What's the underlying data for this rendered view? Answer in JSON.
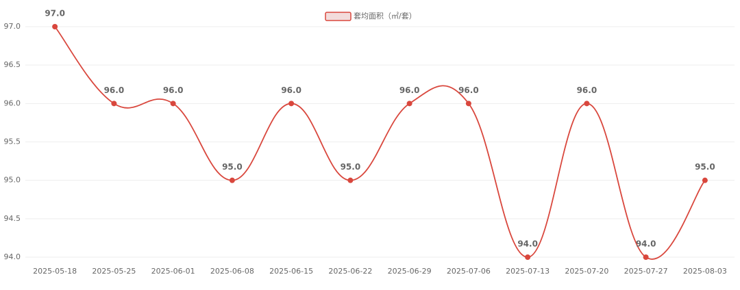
{
  "chart_data": {
    "type": "line",
    "smooth": true,
    "categories": [
      "2025-05-18",
      "2025-05-25",
      "2025-06-01",
      "2025-06-08",
      "2025-06-15",
      "2025-06-22",
      "2025-06-29",
      "2025-07-06",
      "2025-07-13",
      "2025-07-20",
      "2025-07-27",
      "2025-08-03"
    ],
    "series": [
      {
        "name": "套均面积（㎡/套）",
        "color": "#d9473d",
        "values": [
          97,
          96,
          96,
          95,
          96,
          95,
          96,
          96,
          94,
          96,
          94,
          95
        ],
        "value_labels": [
          "97.0",
          "96.0",
          "96.0",
          "95.0",
          "96.0",
          "95.0",
          "96.0",
          "96.0",
          "94.0",
          "96.0",
          "94.0",
          "95.0"
        ]
      }
    ],
    "ylim": [
      94,
      97
    ],
    "yticks": [
      {
        "value": 94,
        "label": "94.0"
      },
      {
        "value": 94.5,
        "label": "94.5"
      },
      {
        "value": 95,
        "label": "95.0"
      },
      {
        "value": 95.5,
        "label": "95.5"
      },
      {
        "value": 96,
        "label": "96.0"
      },
      {
        "value": 96.5,
        "label": "96.5"
      },
      {
        "value": 97,
        "label": "97.0"
      }
    ],
    "grid": true
  }
}
